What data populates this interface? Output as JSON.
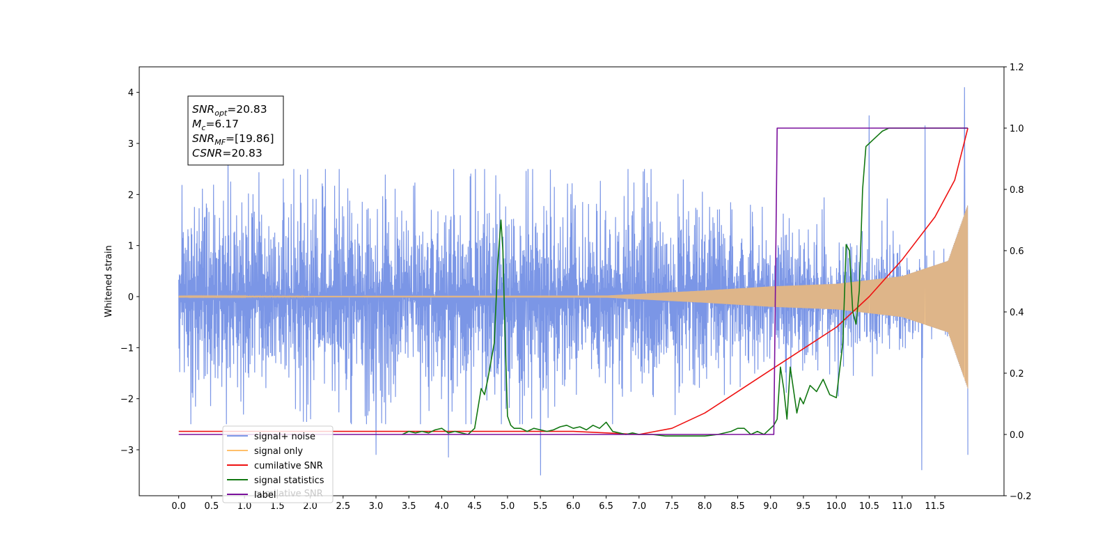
{
  "chart_data": {
    "type": "line",
    "ylabel": "Whitened strain",
    "xlim": [
      -0.6,
      12.55
    ],
    "ylim_left": [
      -3.9,
      4.5
    ],
    "ylim_right": [
      -0.2,
      1.2
    ],
    "grid": false,
    "legend_position": "lower-left",
    "x_ticks": [
      "0.0",
      "0.5",
      "1.0",
      "1.5",
      "2.0",
      "2.5",
      "3.0",
      "3.5",
      "4.0",
      "4.5",
      "5.0",
      "5.5",
      "6.0",
      "6.5",
      "7.0",
      "7.5",
      "8.0",
      "8.5",
      "9.0",
      "9.5",
      "10.0",
      "10.5",
      "11.0",
      "11.5"
    ],
    "y_ticks_left": [
      "−3",
      "−2",
      "−1",
      "0",
      "1",
      "2",
      "3",
      "4"
    ],
    "y_ticks_right": [
      "−0.2",
      "0.0",
      "0.2",
      "0.4",
      "0.6",
      "0.8",
      "1.0",
      "1.2"
    ],
    "annotation": {
      "lines": [
        {
          "sym": "SNR",
          "sub": "opt",
          "value": "=20.83"
        },
        {
          "sym": "M",
          "sub": "c",
          "value": "=6.17"
        },
        {
          "sym": "SNR",
          "sub": "MF",
          "value": "=[19.86]"
        },
        {
          "sym": "CSNR",
          "sub": "",
          "value": "=20.83"
        }
      ]
    },
    "series": [
      {
        "name": "signal+ noise",
        "axis": "left",
        "color": "#7b96e6",
        "x_range": [
          0.0,
          12.0
        ],
        "envelope_sd": [
          [
            0.0,
            0.85
          ],
          [
            6.5,
            0.85
          ],
          [
            7.5,
            0.8
          ],
          [
            9.0,
            0.6
          ],
          [
            10.5,
            0.45
          ],
          [
            11.5,
            0.3
          ],
          [
            12.0,
            0.2
          ]
        ],
        "max_envelope": [
          [
            0.0,
            2.5
          ],
          [
            12.0,
            2.5
          ]
        ],
        "spikes": [
          [
            4.1,
            -3.15
          ],
          [
            5.5,
            -3.5
          ],
          [
            10.5,
            3.55
          ],
          [
            11.35,
            3.35
          ],
          [
            11.3,
            -3.4
          ],
          [
            11.95,
            4.1
          ],
          [
            12.0,
            -3.1
          ],
          [
            0.75,
            3.1
          ],
          [
            3.0,
            -3.1
          ]
        ]
      },
      {
        "name": "signal only",
        "axis": "left",
        "color": "#ffbf69",
        "x_range": [
          0.0,
          12.0
        ],
        "amplitude": [
          [
            0.0,
            0.01
          ],
          [
            6.5,
            0.02
          ],
          [
            8.0,
            0.12
          ],
          [
            9.0,
            0.2
          ],
          [
            10.0,
            0.25
          ],
          [
            11.0,
            0.4
          ],
          [
            11.7,
            0.7
          ],
          [
            12.0,
            1.8
          ]
        ]
      },
      {
        "name": "cumilative SNR",
        "axis": "right",
        "color": "#ee1111",
        "x": [
          0.0,
          6.0,
          7.0,
          7.5,
          8.0,
          8.5,
          9.0,
          9.5,
          10.0,
          10.5,
          11.0,
          11.5,
          11.8,
          12.0
        ],
        "y": [
          0.01,
          0.01,
          0.0,
          0.02,
          0.07,
          0.14,
          0.21,
          0.28,
          0.35,
          0.45,
          0.57,
          0.71,
          0.83,
          1.0
        ]
      },
      {
        "name": "signal statistics",
        "axis": "right",
        "color": "#117711",
        "x": [
          3.4,
          3.5,
          3.6,
          3.7,
          3.8,
          3.9,
          4.0,
          4.1,
          4.2,
          4.3,
          4.4,
          4.5,
          4.6,
          4.65,
          4.7,
          4.8,
          4.85,
          4.9,
          4.93,
          4.96,
          5.0,
          5.05,
          5.1,
          5.2,
          5.3,
          5.4,
          5.5,
          5.6,
          5.7,
          5.8,
          5.9,
          6.0,
          6.1,
          6.2,
          6.3,
          6.4,
          6.5,
          6.6,
          6.7,
          6.8,
          6.9,
          7.0,
          7.2,
          7.4,
          7.6,
          7.8,
          8.0,
          8.2,
          8.4,
          8.5,
          8.6,
          8.7,
          8.8,
          8.9,
          9.0,
          9.05,
          9.1,
          9.15,
          9.2,
          9.25,
          9.3,
          9.4,
          9.45,
          9.5,
          9.6,
          9.7,
          9.8,
          9.9,
          10.0,
          10.1,
          10.15,
          10.2,
          10.25,
          10.3,
          10.35,
          10.4,
          10.45,
          10.5,
          10.55,
          10.6,
          10.65,
          10.7,
          10.8,
          10.9,
          11.0,
          11.2,
          11.5,
          12.0
        ],
        "y": [
          0.0,
          0.01,
          0.005,
          0.01,
          0.005,
          0.015,
          0.02,
          0.005,
          0.01,
          0.005,
          0.0,
          0.02,
          0.15,
          0.13,
          0.18,
          0.3,
          0.55,
          0.7,
          0.6,
          0.35,
          0.06,
          0.03,
          0.02,
          0.02,
          0.01,
          0.02,
          0.015,
          0.01,
          0.015,
          0.025,
          0.03,
          0.02,
          0.025,
          0.015,
          0.03,
          0.02,
          0.04,
          0.01,
          0.005,
          0.0,
          0.005,
          0.0,
          0.0,
          -0.005,
          -0.005,
          -0.005,
          -0.005,
          0.0,
          0.01,
          0.02,
          0.02,
          0.0,
          0.01,
          0.0,
          0.02,
          0.03,
          0.05,
          0.22,
          0.15,
          0.05,
          0.22,
          0.07,
          0.12,
          0.1,
          0.16,
          0.14,
          0.18,
          0.13,
          0.12,
          0.3,
          0.62,
          0.6,
          0.4,
          0.36,
          0.47,
          0.8,
          0.94,
          0.95,
          0.96,
          0.97,
          0.98,
          0.99,
          1.0,
          1.0,
          1.0,
          1.0,
          1.0,
          1.0
        ]
      },
      {
        "name": "label",
        "axis": "right",
        "color": "#7a0f9c",
        "x": [
          0.0,
          9.05,
          9.1,
          12.0
        ],
        "y": [
          0.0,
          0.0,
          1.0,
          1.0
        ]
      }
    ],
    "hidden_legend_text": "cumilative SNR"
  }
}
